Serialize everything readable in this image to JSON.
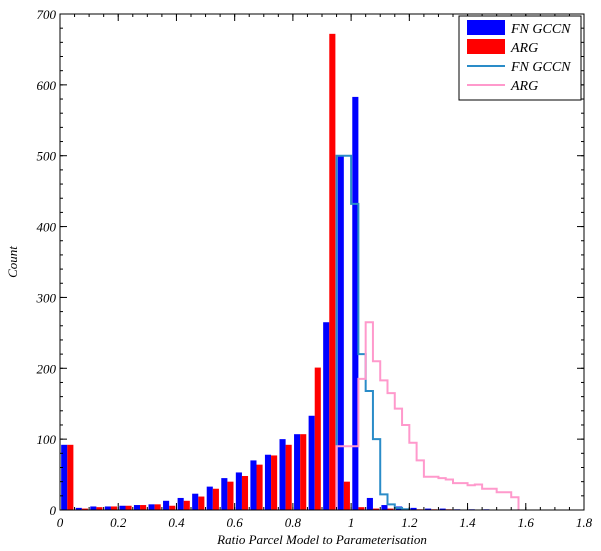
{
  "chart_data": {
    "type": "bar",
    "xlabel": "Ratio Parcel Model to Parameterisation",
    "ylabel": "Count",
    "xlim": [
      0,
      1.8
    ],
    "ylim": [
      0,
      700
    ],
    "x_ticks": [
      "0",
      "0.2",
      "0.4",
      "0.6",
      "0.8",
      "1",
      "1.2",
      "1.4",
      "1.6",
      "1.8"
    ],
    "y_ticks": [
      "0",
      "100",
      "200",
      "300",
      "400",
      "500",
      "600",
      "700"
    ],
    "grid": false,
    "legend_position": "top-right",
    "bin_width": 0.05,
    "bar_series": [
      {
        "name": "FN GCCN",
        "color": "#0000ff",
        "x": [
          0.025,
          0.075,
          0.125,
          0.175,
          0.225,
          0.275,
          0.325,
          0.375,
          0.425,
          0.475,
          0.525,
          0.575,
          0.625,
          0.675,
          0.725,
          0.775,
          0.825,
          0.875,
          0.925,
          0.975,
          1.025,
          1.075,
          1.125,
          1.175,
          1.225,
          1.275,
          1.325,
          1.375,
          1.425,
          1.475
        ],
        "values": [
          92,
          3,
          5,
          5,
          6,
          7,
          8,
          13,
          17,
          23,
          33,
          45,
          53,
          70,
          78,
          100,
          107,
          133,
          265,
          500,
          583,
          17,
          7,
          5,
          3,
          2,
          2,
          1,
          1,
          1
        ]
      },
      {
        "name": "ARG",
        "color": "#ff0000",
        "x": [
          0.025,
          0.075,
          0.125,
          0.175,
          0.225,
          0.275,
          0.325,
          0.375,
          0.425,
          0.475,
          0.525,
          0.575,
          0.625,
          0.675,
          0.725,
          0.775,
          0.825,
          0.875,
          0.925,
          0.975,
          1.025,
          1.075,
          1.125,
          1.175,
          1.225,
          1.275,
          1.325,
          1.375,
          1.425,
          1.475
        ],
        "values": [
          92,
          2,
          4,
          5,
          6,
          7,
          8,
          6,
          13,
          19,
          30,
          40,
          48,
          64,
          77,
          92,
          107,
          201,
          672,
          40,
          4,
          2,
          2,
          1,
          1,
          1,
          1,
          0,
          0,
          0
        ]
      }
    ],
    "step_series": [
      {
        "name": "FN GCCN",
        "color": "#2a8cc8",
        "edges": [
          0.95,
          1.0,
          1.025,
          1.05,
          1.075,
          1.1,
          1.125,
          1.15,
          1.175,
          1.2
        ],
        "values": [
          500,
          432,
          220,
          168,
          100,
          22,
          8,
          3,
          1
        ]
      },
      {
        "name": "ARG",
        "color": "#ff99cc",
        "edges": [
          0.95,
          1.0,
          1.025,
          1.05,
          1.075,
          1.1,
          1.125,
          1.15,
          1.175,
          1.2,
          1.225,
          1.25,
          1.275,
          1.3,
          1.325,
          1.35,
          1.375,
          1.4,
          1.425,
          1.45,
          1.475,
          1.5,
          1.525,
          1.55,
          1.575
        ],
        "values": [
          90,
          90,
          185,
          265,
          210,
          183,
          165,
          143,
          120,
          95,
          70,
          47,
          47,
          45,
          43,
          38,
          38,
          35,
          36,
          30,
          30,
          25,
          25,
          18
        ]
      }
    ],
    "legend": [
      {
        "label": "FN GCCN",
        "kind": "bar",
        "color": "#0000ff"
      },
      {
        "label": "ARG",
        "kind": "bar",
        "color": "#ff0000"
      },
      {
        "label": "FN GCCN",
        "kind": "line",
        "color": "#2a8cc8"
      },
      {
        "label": "ARG",
        "kind": "line",
        "color": "#ff99cc"
      }
    ]
  }
}
